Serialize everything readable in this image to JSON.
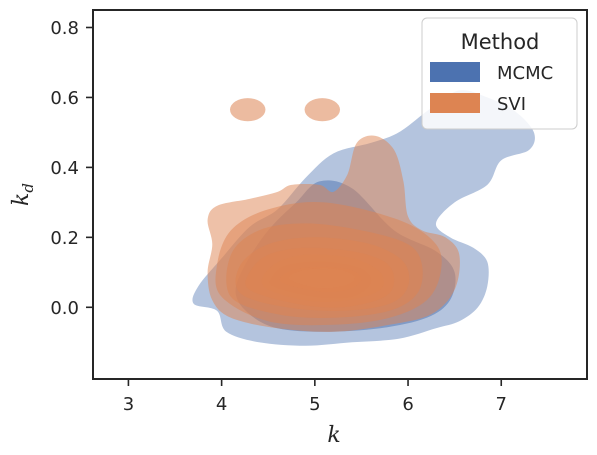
{
  "chart_data": {
    "type": "kde",
    "title": "",
    "xlabel": "k",
    "ylabel_main": "k",
    "ylabel_sub": "d",
    "xlim": [
      2.62,
      7.92
    ],
    "ylim": [
      -0.205,
      0.85
    ],
    "xticks": [
      3,
      4,
      5,
      6,
      7
    ],
    "yticks": [
      0.0,
      0.2,
      0.4,
      0.6,
      0.8
    ],
    "ytick_labels": [
      "0.0",
      "0.2",
      "0.4",
      "0.6",
      "0.8"
    ],
    "grid": false,
    "legend": {
      "title": "Method",
      "position": "top-right",
      "entries": [
        {
          "label": "MCMC",
          "color": "#4c72b0"
        },
        {
          "label": "SVI",
          "color": "#dd8452"
        }
      ]
    },
    "series": [
      {
        "name": "MCMC",
        "color": "#4c72b0",
        "levels": [
          {
            "opacity": 0.42,
            "points": [
              [
                3.95,
                -0.01
              ],
              [
                4.05,
                -0.07
              ],
              [
                4.4,
                -0.1
              ],
              [
                4.9,
                -0.11
              ],
              [
                5.4,
                -0.1
              ],
              [
                5.9,
                -0.09
              ],
              [
                6.3,
                -0.06
              ],
              [
                6.55,
                -0.04
              ],
              [
                6.75,
                0.0
              ],
              [
                6.85,
                0.06
              ],
              [
                6.85,
                0.13
              ],
              [
                6.7,
                0.17
              ],
              [
                6.45,
                0.2
              ],
              [
                6.3,
                0.24
              ],
              [
                6.5,
                0.3
              ],
              [
                6.85,
                0.35
              ],
              [
                7.0,
                0.42
              ],
              [
                7.3,
                0.45
              ],
              [
                7.35,
                0.5
              ],
              [
                7.15,
                0.56
              ],
              [
                6.85,
                0.6
              ],
              [
                6.55,
                0.62
              ],
              [
                6.25,
                0.57
              ],
              [
                5.9,
                0.5
              ],
              [
                5.6,
                0.47
              ],
              [
                5.2,
                0.44
              ],
              [
                4.9,
                0.37
              ],
              [
                4.6,
                0.28
              ],
              [
                4.3,
                0.23
              ],
              [
                4.0,
                0.14
              ],
              [
                3.75,
                0.06
              ],
              [
                3.7,
                0.01
              ]
            ]
          },
          {
            "opacity": 0.5,
            "points": [
              [
                4.3,
                -0.02
              ],
              [
                4.6,
                -0.06
              ],
              [
                5.1,
                -0.07
              ],
              [
                5.7,
                -0.06
              ],
              [
                6.2,
                -0.03
              ],
              [
                6.45,
                0.02
              ],
              [
                6.5,
                0.1
              ],
              [
                6.3,
                0.16
              ],
              [
                5.85,
                0.22
              ],
              [
                5.4,
                0.34
              ],
              [
                5.05,
                0.36
              ],
              [
                4.8,
                0.3
              ],
              [
                4.5,
                0.22
              ],
              [
                4.25,
                0.12
              ],
              [
                4.15,
                0.04
              ]
            ]
          }
        ]
      },
      {
        "name": "SVI",
        "color": "#dd8452",
        "levels": [
          {
            "opacity": 0.5,
            "points": [
              [
                3.9,
                0.02
              ],
              [
                4.1,
                -0.03
              ],
              [
                4.6,
                -0.06
              ],
              [
                5.2,
                -0.07
              ],
              [
                5.8,
                -0.05
              ],
              [
                6.25,
                -0.02
              ],
              [
                6.5,
                0.05
              ],
              [
                6.55,
                0.15
              ],
              [
                6.4,
                0.2
              ],
              [
                6.15,
                0.22
              ],
              [
                6.0,
                0.26
              ],
              [
                5.95,
                0.36
              ],
              [
                5.85,
                0.45
              ],
              [
                5.65,
                0.49
              ],
              [
                5.45,
                0.47
              ],
              [
                5.35,
                0.38
              ],
              [
                5.2,
                0.33
              ],
              [
                5.05,
                0.35
              ],
              [
                4.75,
                0.35
              ],
              [
                4.6,
                0.33
              ],
              [
                4.3,
                0.31
              ],
              [
                3.95,
                0.29
              ],
              [
                3.85,
                0.25
              ],
              [
                3.9,
                0.18
              ],
              [
                3.85,
                0.1
              ]
            ]
          },
          {
            "opacity": 0.5,
            "points": [
              [
                4.0,
                0.03
              ],
              [
                4.5,
                -0.04
              ],
              [
                5.2,
                -0.05
              ],
              [
                5.8,
                -0.03
              ],
              [
                6.2,
                0.02
              ],
              [
                6.35,
                0.1
              ],
              [
                6.3,
                0.18
              ],
              [
                5.9,
                0.25
              ],
              [
                5.1,
                0.3
              ],
              [
                4.5,
                0.28
              ],
              [
                4.1,
                0.22
              ],
              [
                3.95,
                0.12
              ]
            ]
          },
          {
            "opacity": 0.5,
            "points": [
              [
                4.1,
                0.03
              ],
              [
                4.6,
                -0.02
              ],
              [
                5.2,
                -0.03
              ],
              [
                5.8,
                -0.01
              ],
              [
                6.1,
                0.04
              ],
              [
                6.15,
                0.12
              ],
              [
                6.0,
                0.18
              ],
              [
                5.5,
                0.22
              ],
              [
                4.9,
                0.24
              ],
              [
                4.4,
                0.22
              ],
              [
                4.1,
                0.15
              ]
            ]
          },
          {
            "opacity": 0.5,
            "points": [
              [
                4.2,
                0.04
              ],
              [
                4.7,
                0.0
              ],
              [
                5.3,
                -0.01
              ],
              [
                5.8,
                0.01
              ],
              [
                6.0,
                0.06
              ],
              [
                5.95,
                0.13
              ],
              [
                5.6,
                0.18
              ],
              [
                5.0,
                0.2
              ],
              [
                4.5,
                0.18
              ],
              [
                4.2,
                0.12
              ]
            ]
          },
          {
            "opacity": 0.5,
            "points": [
              [
                4.3,
                0.05
              ],
              [
                4.8,
                0.01
              ],
              [
                5.3,
                0.0
              ],
              [
                5.75,
                0.03
              ],
              [
                5.85,
                0.08
              ],
              [
                5.75,
                0.13
              ],
              [
                5.4,
                0.16
              ],
              [
                4.9,
                0.17
              ],
              [
                4.5,
                0.15
              ],
              [
                4.3,
                0.1
              ]
            ]
          },
          {
            "opacity": 0.5,
            "points": [
              [
                4.45,
                0.06
              ],
              [
                4.9,
                0.02
              ],
              [
                5.35,
                0.02
              ],
              [
                5.7,
                0.05
              ],
              [
                5.7,
                0.1
              ],
              [
                5.4,
                0.14
              ],
              [
                4.9,
                0.15
              ],
              [
                4.55,
                0.12
              ]
            ]
          },
          {
            "opacity": 0.55,
            "points": [
              [
                4.55,
                0.06
              ],
              [
                5.0,
                0.03
              ],
              [
                5.4,
                0.03
              ],
              [
                5.6,
                0.07
              ],
              [
                5.5,
                0.11
              ],
              [
                5.1,
                0.13
              ],
              [
                4.7,
                0.12
              ],
              [
                4.55,
                0.09
              ]
            ]
          },
          {
            "opacity": 0.6,
            "points": [
              [
                4.65,
                0.07
              ],
              [
                5.05,
                0.045
              ],
              [
                5.35,
                0.05
              ],
              [
                5.5,
                0.08
              ],
              [
                5.35,
                0.11
              ],
              [
                4.95,
                0.115
              ],
              [
                4.7,
                0.1
              ]
            ]
          },
          {
            "opacity": 0.7,
            "points": [
              [
                4.73,
                0.08
              ],
              [
                5.05,
                0.055
              ],
              [
                5.35,
                0.065
              ],
              [
                5.42,
                0.09
              ],
              [
                5.2,
                0.11
              ],
              [
                4.85,
                0.105
              ]
            ]
          },
          {
            "opacity": 0.85,
            "points": [
              [
                4.75,
                0.085
              ],
              [
                5.0,
                0.06
              ],
              [
                5.3,
                0.065
              ],
              [
                5.4,
                0.088
              ],
              [
                5.25,
                0.105
              ],
              [
                4.9,
                0.105
              ]
            ]
          }
        ],
        "blobs": [
          {
            "cx": 4.28,
            "cy": 0.565,
            "rx": 0.19,
            "ry": 0.033,
            "opacity": 0.55
          },
          {
            "cx": 5.08,
            "cy": 0.565,
            "rx": 0.19,
            "ry": 0.033,
            "opacity": 0.55
          }
        ]
      }
    ]
  }
}
